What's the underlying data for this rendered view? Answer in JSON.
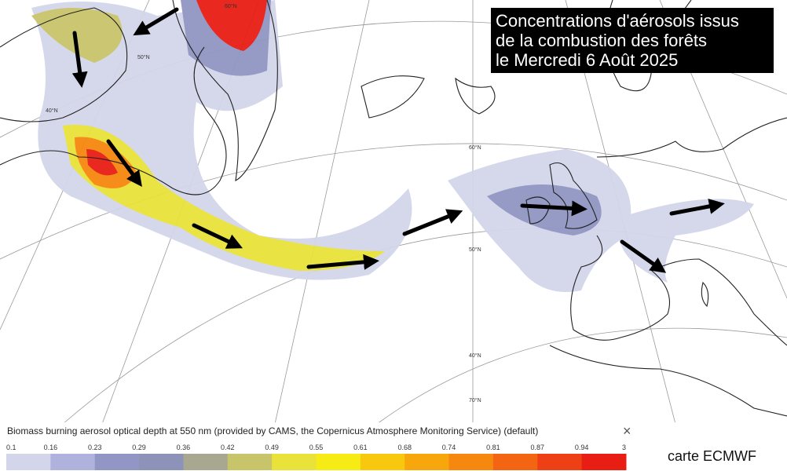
{
  "header": {
    "title_lines": [
      "Concentrations d'aérosols issus",
      "de la combustion des forêts",
      "le Mercredi 6 Août 2025"
    ]
  },
  "map": {
    "latitude_labels": [
      "60°N",
      "50°N",
      "40°N",
      "70°N",
      "50°N",
      "40°N",
      "60°N"
    ]
  },
  "legend": {
    "title": "Biomass burning aerosol optical depth at 550 nm (provided by CAMS, the Copernicus Atmosphere Monitoring Service) (default)",
    "ticks": [
      "0.1",
      "0.16",
      "0.23",
      "0.29",
      "0.36",
      "0.42",
      "0.49",
      "0.55",
      "0.61",
      "0.68",
      "0.74",
      "0.81",
      "0.87",
      "0.94",
      "3"
    ],
    "colors": [
      "#d3d6ea",
      "#aeb2dc",
      "#9196c4",
      "#8d93b8",
      "#a8a890",
      "#c8c46a",
      "#e8e23a",
      "#f6eb14",
      "#f7c80e",
      "#f7a70c",
      "#f6870f",
      "#f36512",
      "#ef3f14",
      "#e81e14"
    ]
  },
  "credit": "carte ECMWF"
}
